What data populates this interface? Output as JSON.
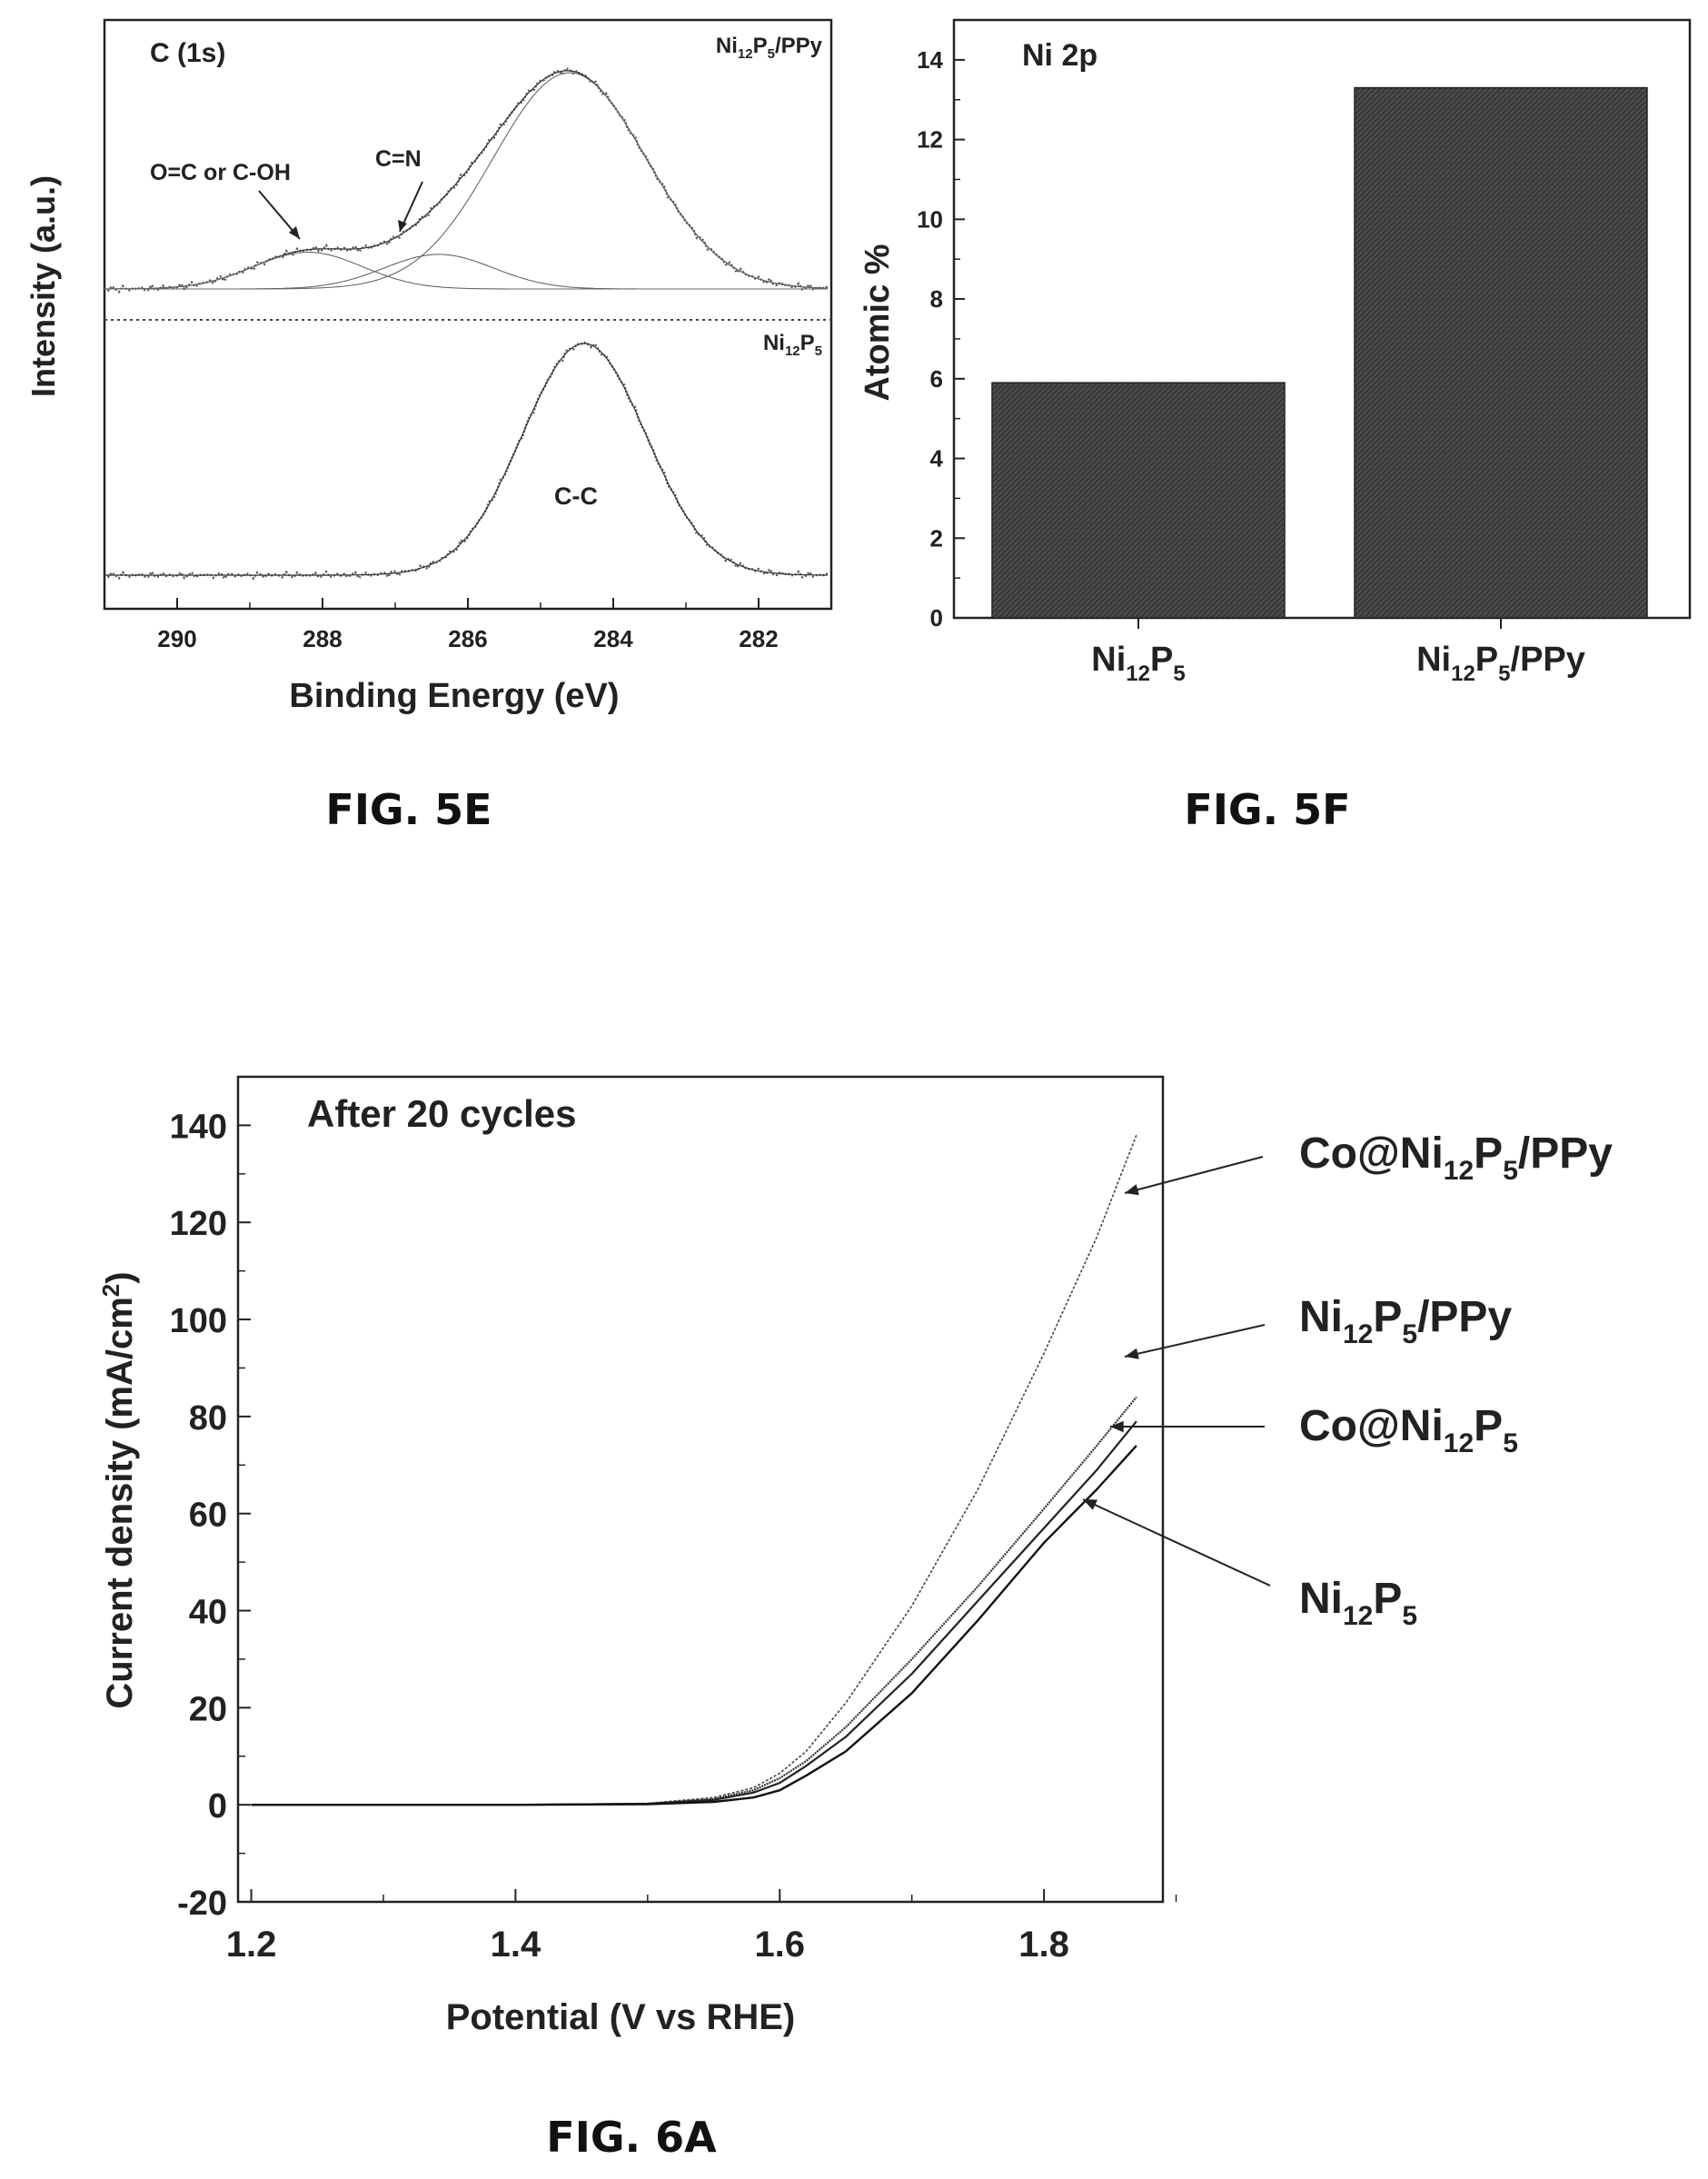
{
  "figures": {
    "fig5e": "FIG. 5E",
    "fig5f": "FIG. 5F",
    "fig6a": "FIG. 6A"
  },
  "chart_data": [
    {
      "id": "fig5e",
      "type": "line",
      "panel_label": "C (1s)",
      "xlabel": "Binding Energy (eV)",
      "ylabel": "Intensity (a.u.)",
      "xlim": [
        291,
        281
      ],
      "x_ticks": [
        "290",
        "288",
        "286",
        "284",
        "282"
      ],
      "x_reversed": true,
      "panels": [
        {
          "name": "Ni12P5/PPy",
          "name_parts": {
            "base": "Ni",
            "sub1": "12",
            "mid": "P",
            "sub2": "5",
            "tail": "/PPy"
          },
          "annotations": [
            "O=C or C-OH",
            "C=N"
          ],
          "peaks": [
            {
              "label": "C-C",
              "center_eV": 284.6,
              "relative_height": 1.0
            },
            {
              "label": "C=N",
              "center_eV": 286.4,
              "relative_height": 0.16
            },
            {
              "label": "O=C or C-OH",
              "center_eV": 288.2,
              "relative_height": 0.17
            }
          ]
        },
        {
          "name": "Ni12P5",
          "name_parts": {
            "base": "Ni",
            "sub1": "12",
            "mid": "P",
            "sub2": "5",
            "tail": ""
          },
          "annotations": [
            "C-C"
          ],
          "peaks": [
            {
              "label": "C-C",
              "center_eV": 284.4,
              "relative_height": 1.0
            }
          ]
        }
      ]
    },
    {
      "id": "fig5f",
      "type": "bar",
      "panel_label": "Ni 2p",
      "ylabel": "Atomic %",
      "ylim": [
        0,
        15
      ],
      "y_ticks": [
        0,
        2,
        4,
        6,
        8,
        10,
        12,
        14
      ],
      "categories": [
        "Ni12P5",
        "Ni12P5/PPy"
      ],
      "category_parts": [
        {
          "base": "Ni",
          "sub1": "12",
          "mid": "P",
          "sub2": "5",
          "tail": ""
        },
        {
          "base": "Ni",
          "sub1": "12",
          "mid": "P",
          "sub2": "5",
          "tail": "/PPy"
        }
      ],
      "values": [
        5.9,
        13.3
      ]
    },
    {
      "id": "fig6a",
      "type": "line",
      "panel_label": "After 20 cycles",
      "xlabel": "Potential (V vs RHE)",
      "ylabel": "Current density (mA/cm²)",
      "ylabel_parts": {
        "main": "Current density (mA/cm",
        "sup": "2",
        "tail": ")"
      },
      "xlim": [
        1.19,
        1.89
      ],
      "ylim": [
        -20,
        150
      ],
      "x_ticks": [
        "1.2",
        "1.4",
        "1.6",
        "1.8"
      ],
      "y_ticks": [
        -20,
        0,
        20,
        40,
        60,
        80,
        100,
        120,
        140
      ],
      "series": [
        {
          "name": "Co@Ni12P5/PPy",
          "name_parts": {
            "base": "Co@Ni",
            "sub1": "12",
            "mid": "P",
            "sub2": "5",
            "tail": "/PPy"
          },
          "x": [
            1.2,
            1.4,
            1.5,
            1.55,
            1.58,
            1.6,
            1.62,
            1.65,
            1.7,
            1.75,
            1.8,
            1.84,
            1.87
          ],
          "y": [
            0,
            0,
            0.3,
            1.5,
            3.5,
            6.5,
            11,
            21,
            41,
            65,
            93,
            117,
            138
          ]
        },
        {
          "name": "Ni12P5/PPy",
          "name_parts": {
            "base": "Ni",
            "sub1": "12",
            "mid": "P",
            "sub2": "5",
            "tail": "/PPy"
          },
          "x": [
            1.2,
            1.4,
            1.5,
            1.55,
            1.58,
            1.6,
            1.62,
            1.65,
            1.7,
            1.75,
            1.8,
            1.84,
            1.87
          ],
          "y": [
            0,
            0,
            0.2,
            1.2,
            3,
            5.5,
            9,
            16,
            30,
            45,
            61,
            74,
            84
          ]
        },
        {
          "name": "Co@Ni12P5",
          "name_parts": {
            "base": "Co@Ni",
            "sub1": "12",
            "mid": "P",
            "sub2": "5",
            "tail": ""
          },
          "x": [
            1.2,
            1.4,
            1.5,
            1.55,
            1.58,
            1.6,
            1.62,
            1.65,
            1.7,
            1.75,
            1.8,
            1.84,
            1.87
          ],
          "y": [
            0,
            0,
            0.2,
            1,
            2.5,
            4.5,
            8,
            14,
            27,
            42,
            57,
            69,
            79
          ]
        },
        {
          "name": "Ni12P5",
          "name_parts": {
            "base": "Ni",
            "sub1": "12",
            "mid": "P",
            "sub2": "5",
            "tail": ""
          },
          "x": [
            1.2,
            1.4,
            1.5,
            1.55,
            1.58,
            1.6,
            1.62,
            1.65,
            1.7,
            1.75,
            1.8,
            1.84,
            1.87
          ],
          "y": [
            0,
            0,
            0.1,
            0.6,
            1.5,
            3,
            6,
            11,
            23,
            38,
            54,
            65,
            74
          ]
        }
      ]
    }
  ]
}
